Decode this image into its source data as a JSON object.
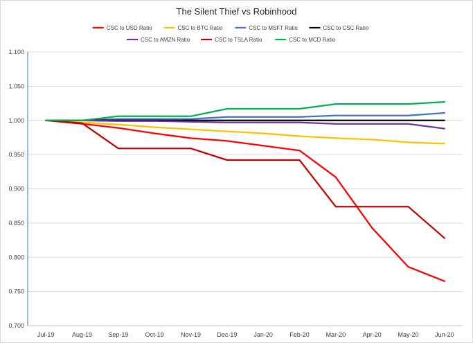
{
  "chart_data": {
    "type": "line",
    "title": "The Silent Thief vs Robinhood",
    "xlabel": "",
    "ylabel": "",
    "ylim": [
      0.7,
      1.1
    ],
    "yticks": [
      "0.700",
      "0.750",
      "0.800",
      "0.850",
      "0.900",
      "0.950",
      "1.000",
      "1.050",
      "1.100"
    ],
    "categories": [
      "Jul-19",
      "Aug-19",
      "Sep-19",
      "Oct-19",
      "Nov-19",
      "Dec-19",
      "Jan-20",
      "Feb-20",
      "Mar-20",
      "Apr-20",
      "May-20",
      "Jun-20"
    ],
    "grid": true,
    "legend_position": "top",
    "series": [
      {
        "name": "CSC to USD Ratio",
        "color": "#ff0000",
        "values": [
          1.0,
          0.995,
          0.989,
          0.981,
          0.974,
          0.97,
          0.963,
          0.956,
          0.917,
          0.843,
          0.786,
          0.765
        ]
      },
      {
        "name": "CSC to BTC Ratio",
        "color": "#ffc000",
        "values": [
          1.0,
          0.997,
          0.994,
          0.99,
          0.987,
          0.984,
          0.981,
          0.977,
          0.974,
          0.972,
          0.968,
          0.966
        ]
      },
      {
        "name": "CSC to MSFT Ratio",
        "color": "#4472c4",
        "values": [
          1.0,
          1.0,
          1.002,
          1.002,
          1.002,
          1.005,
          1.005,
          1.005,
          1.007,
          1.007,
          1.007,
          1.011
        ]
      },
      {
        "name": "CSC to CSC Ratio",
        "color": "#000000",
        "values": [
          1.0,
          1.0,
          1.0,
          1.0,
          1.0,
          1.0,
          1.0,
          1.0,
          1.0,
          1.0,
          1.0,
          1.0
        ]
      },
      {
        "name": "CSC to AMZN Ratio",
        "color": "#7030a0",
        "values": [
          1.0,
          1.0,
          0.999,
          0.999,
          0.998,
          0.997,
          0.997,
          0.997,
          0.995,
          0.995,
          0.995,
          0.988
        ]
      },
      {
        "name": "CSC to TSLA Ratio",
        "color": "#c00000",
        "values": [
          1.0,
          0.996,
          0.959,
          0.959,
          0.959,
          0.942,
          0.942,
          0.942,
          0.874,
          0.874,
          0.874,
          0.828
        ]
      },
      {
        "name": "CSC to MCD Ratio",
        "color": "#00b050",
        "values": [
          1.0,
          1.0,
          1.006,
          1.006,
          1.006,
          1.017,
          1.017,
          1.017,
          1.024,
          1.024,
          1.024,
          1.027
        ]
      }
    ]
  },
  "colors": {
    "gridline": "#d9d9d9",
    "axis": "#bfbfbf",
    "frame": "#d9d9d9"
  }
}
